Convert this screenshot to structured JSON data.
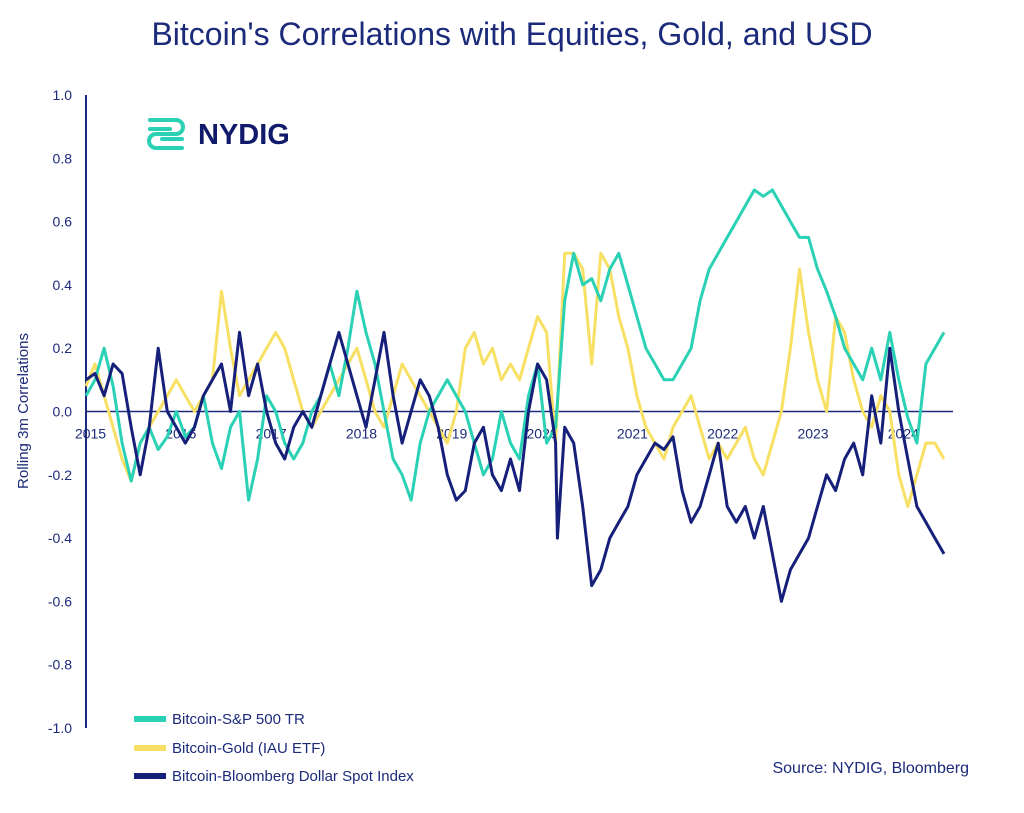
{
  "colors": {
    "sp500": "#2ad1b4",
    "gold": "#f7e064",
    "usd": "#16207a",
    "axis": "#1b2a7a",
    "logo_mark": "#2ad1b4"
  },
  "logo": {
    "text": "NYDIG",
    "icon": "nydig-logo-icon"
  },
  "source": "Source: NYDIG, Bloomberg",
  "chart_data": {
    "type": "line",
    "title": "Bitcoin's Correlations with Equities, Gold, and USD",
    "xlabel": "",
    "ylabel": "Rolling 3m Correlations",
    "ylim": [
      -1.0,
      1.0
    ],
    "xlim": [
      2015.0,
      2024.6
    ],
    "yticks": [
      "1.0",
      "0.8",
      "0.6",
      "0.4",
      "0.2",
      "0.0",
      "-0.2",
      "-0.4",
      "-0.6",
      "-0.8",
      "-1.0"
    ],
    "xticks": [
      "2015",
      "2016",
      "2017",
      "2018",
      "2019",
      "2020",
      "2021",
      "2022",
      "2023",
      "2024"
    ],
    "legend_position": "bottom-left",
    "series": [
      {
        "key": "sp500",
        "name": "Bitcoin-S&P 500 TR",
        "x": [
          2015.0,
          2015.1,
          2015.2,
          2015.3,
          2015.4,
          2015.5,
          2015.6,
          2015.7,
          2015.8,
          2015.9,
          2016.0,
          2016.1,
          2016.2,
          2016.3,
          2016.4,
          2016.5,
          2016.6,
          2016.7,
          2016.8,
          2016.9,
          2017.0,
          2017.1,
          2017.2,
          2017.3,
          2017.4,
          2017.5,
          2017.6,
          2017.7,
          2017.8,
          2017.9,
          2018.0,
          2018.1,
          2018.2,
          2018.3,
          2018.4,
          2018.5,
          2018.6,
          2018.7,
          2018.8,
          2018.9,
          2019.0,
          2019.1,
          2019.2,
          2019.3,
          2019.4,
          2019.5,
          2019.6,
          2019.7,
          2019.8,
          2019.9,
          2020.0,
          2020.1,
          2020.2,
          2020.3,
          2020.4,
          2020.5,
          2020.6,
          2020.7,
          2020.8,
          2020.9,
          2021.0,
          2021.1,
          2021.2,
          2021.3,
          2021.4,
          2021.5,
          2021.6,
          2021.7,
          2021.8,
          2021.9,
          2022.0,
          2022.1,
          2022.2,
          2022.3,
          2022.4,
          2022.5,
          2022.6,
          2022.7,
          2022.8,
          2022.9,
          2023.0,
          2023.1,
          2023.2,
          2023.3,
          2023.4,
          2023.5,
          2023.6,
          2023.7,
          2023.8,
          2023.9,
          2024.0,
          2024.1,
          2024.2,
          2024.3,
          2024.4,
          2024.5
        ],
        "values": [
          0.05,
          0.1,
          0.2,
          0.08,
          -0.1,
          -0.22,
          -0.1,
          -0.05,
          -0.12,
          -0.08,
          0.0,
          -0.08,
          -0.05,
          0.05,
          -0.1,
          -0.18,
          -0.05,
          0.0,
          -0.28,
          -0.15,
          0.05,
          0.0,
          -0.1,
          -0.15,
          -0.1,
          0.0,
          0.05,
          0.15,
          0.05,
          0.2,
          0.38,
          0.25,
          0.15,
          0.0,
          -0.15,
          -0.2,
          -0.28,
          -0.1,
          0.0,
          0.05,
          0.1,
          0.05,
          0.0,
          -0.1,
          -0.2,
          -0.15,
          0.0,
          -0.1,
          -0.15,
          0.05,
          0.15,
          -0.1,
          -0.05,
          0.35,
          0.5,
          0.4,
          0.42,
          0.35,
          0.45,
          0.5,
          0.4,
          0.3,
          0.2,
          0.15,
          0.1,
          0.1,
          0.15,
          0.2,
          0.35,
          0.45,
          0.5,
          0.55,
          0.6,
          0.65,
          0.7,
          0.68,
          0.7,
          0.65,
          0.6,
          0.55,
          0.55,
          0.45,
          0.38,
          0.3,
          0.2,
          0.15,
          0.1,
          0.2,
          0.1,
          0.25,
          0.1,
          -0.02,
          -0.1,
          0.15,
          0.2,
          0.25
        ]
      },
      {
        "key": "gold",
        "name": "Bitcoin-Gold (IAU ETF)",
        "x": [
          2015.0,
          2015.1,
          2015.2,
          2015.3,
          2015.4,
          2015.5,
          2015.6,
          2015.7,
          2015.8,
          2015.9,
          2016.0,
          2016.1,
          2016.2,
          2016.3,
          2016.4,
          2016.5,
          2016.6,
          2016.7,
          2016.8,
          2016.9,
          2017.0,
          2017.1,
          2017.2,
          2017.3,
          2017.4,
          2017.5,
          2017.6,
          2017.7,
          2017.8,
          2017.9,
          2018.0,
          2018.1,
          2018.2,
          2018.3,
          2018.4,
          2018.5,
          2018.6,
          2018.7,
          2018.8,
          2018.9,
          2019.0,
          2019.1,
          2019.2,
          2019.3,
          2019.4,
          2019.5,
          2019.6,
          2019.7,
          2019.8,
          2019.9,
          2020.0,
          2020.1,
          2020.2,
          2020.3,
          2020.4,
          2020.5,
          2020.6,
          2020.7,
          2020.8,
          2020.9,
          2021.0,
          2021.1,
          2021.2,
          2021.3,
          2021.4,
          2021.5,
          2021.6,
          2021.7,
          2021.8,
          2021.9,
          2022.0,
          2022.1,
          2022.2,
          2022.3,
          2022.4,
          2022.5,
          2022.6,
          2022.7,
          2022.8,
          2022.9,
          2023.0,
          2023.1,
          2023.2,
          2023.3,
          2023.4,
          2023.5,
          2023.6,
          2023.7,
          2023.8,
          2023.9,
          2024.0,
          2024.1,
          2024.2,
          2024.3,
          2024.4,
          2024.5
        ],
        "values": [
          0.08,
          0.15,
          0.05,
          -0.05,
          -0.15,
          -0.22,
          -0.1,
          -0.05,
          0.0,
          0.05,
          0.1,
          0.05,
          0.0,
          0.05,
          0.1,
          0.38,
          0.2,
          0.05,
          0.1,
          0.15,
          0.2,
          0.25,
          0.2,
          0.1,
          0.0,
          -0.05,
          0.0,
          0.05,
          0.1,
          0.15,
          0.2,
          0.1,
          0.0,
          -0.05,
          0.05,
          0.15,
          0.1,
          0.05,
          0.0,
          -0.05,
          -0.1,
          0.0,
          0.2,
          0.25,
          0.15,
          0.2,
          0.1,
          0.15,
          0.1,
          0.2,
          0.3,
          0.25,
          -0.1,
          0.5,
          0.5,
          0.45,
          0.15,
          0.5,
          0.45,
          0.3,
          0.2,
          0.05,
          -0.05,
          -0.1,
          -0.15,
          -0.05,
          0.0,
          0.05,
          -0.05,
          -0.15,
          -0.1,
          -0.15,
          -0.1,
          -0.05,
          -0.15,
          -0.2,
          -0.1,
          0.0,
          0.2,
          0.45,
          0.25,
          0.1,
          0.0,
          0.3,
          0.25,
          0.1,
          0.0,
          -0.05,
          0.05,
          0.0,
          -0.2,
          -0.3,
          -0.2,
          -0.1,
          -0.1,
          -0.15
        ]
      },
      {
        "key": "usd",
        "name": "Bitcoin-Bloomberg Dollar Spot Index",
        "x": [
          2015.0,
          2015.1,
          2015.2,
          2015.3,
          2015.4,
          2015.5,
          2015.6,
          2015.7,
          2015.8,
          2015.9,
          2016.0,
          2016.1,
          2016.2,
          2016.3,
          2016.4,
          2016.5,
          2016.6,
          2016.7,
          2016.8,
          2016.9,
          2017.0,
          2017.1,
          2017.2,
          2017.3,
          2017.4,
          2017.5,
          2017.6,
          2017.7,
          2017.8,
          2017.9,
          2018.0,
          2018.1,
          2018.2,
          2018.3,
          2018.4,
          2018.5,
          2018.6,
          2018.7,
          2018.8,
          2018.9,
          2019.0,
          2019.1,
          2019.2,
          2019.3,
          2019.4,
          2019.5,
          2019.6,
          2019.7,
          2019.8,
          2019.9,
          2020.0,
          2020.1,
          2020.2,
          2020.22,
          2020.3,
          2020.4,
          2020.5,
          2020.6,
          2020.7,
          2020.8,
          2020.9,
          2021.0,
          2021.1,
          2021.2,
          2021.3,
          2021.4,
          2021.5,
          2021.6,
          2021.7,
          2021.8,
          2021.9,
          2022.0,
          2022.1,
          2022.2,
          2022.3,
          2022.4,
          2022.5,
          2022.6,
          2022.7,
          2022.8,
          2022.9,
          2023.0,
          2023.1,
          2023.2,
          2023.3,
          2023.4,
          2023.5,
          2023.6,
          2023.7,
          2023.8,
          2023.9,
          2024.0,
          2024.1,
          2024.2,
          2024.3,
          2024.4,
          2024.5
        ],
        "values": [
          0.1,
          0.12,
          0.05,
          0.15,
          0.12,
          -0.05,
          -0.2,
          -0.05,
          0.2,
          0.0,
          -0.05,
          -0.1,
          -0.05,
          0.05,
          0.1,
          0.15,
          0.0,
          0.25,
          0.05,
          0.15,
          0.0,
          -0.1,
          -0.15,
          -0.05,
          0.0,
          -0.05,
          0.05,
          0.15,
          0.25,
          0.15,
          0.05,
          -0.05,
          0.1,
          0.25,
          0.05,
          -0.1,
          0.0,
          0.1,
          0.05,
          -0.05,
          -0.2,
          -0.28,
          -0.25,
          -0.1,
          -0.05,
          -0.2,
          -0.25,
          -0.15,
          -0.25,
          0.0,
          0.15,
          0.1,
          -0.1,
          -0.4,
          -0.05,
          -0.1,
          -0.3,
          -0.55,
          -0.5,
          -0.4,
          -0.35,
          -0.3,
          -0.2,
          -0.15,
          -0.1,
          -0.12,
          -0.08,
          -0.25,
          -0.35,
          -0.3,
          -0.2,
          -0.1,
          -0.3,
          -0.35,
          -0.3,
          -0.4,
          -0.3,
          -0.45,
          -0.6,
          -0.5,
          -0.45,
          -0.4,
          -0.3,
          -0.2,
          -0.25,
          -0.15,
          -0.1,
          -0.2,
          0.05,
          -0.1,
          0.2,
          0.0,
          -0.15,
          -0.3,
          -0.35,
          -0.4,
          -0.45
        ]
      }
    ]
  }
}
